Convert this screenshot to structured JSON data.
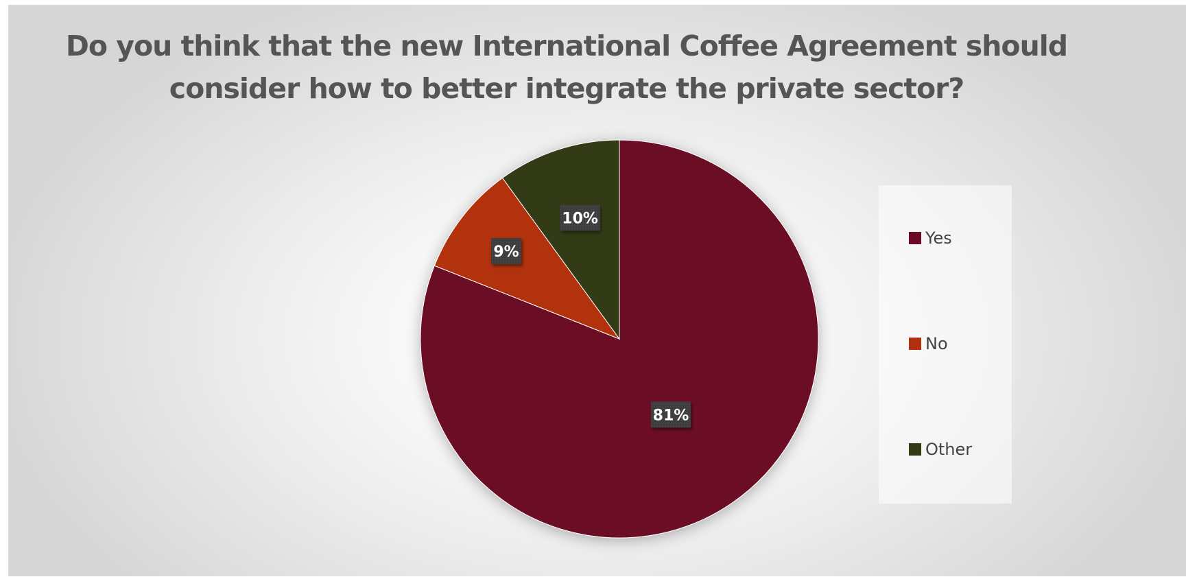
{
  "chart_data": {
    "type": "pie",
    "title": "Do you think that the new International Coffee Agreement should consider how to better integrate the private sector?",
    "title_lines": [
      "Do you think that the new International Coffee Agreement should",
      "consider how to better integrate the private sector?"
    ],
    "categories": [
      "Yes",
      "No",
      "Other"
    ],
    "values": [
      81,
      9,
      10
    ],
    "labels": [
      "81%",
      "9%",
      "10%"
    ],
    "colors": [
      "#6c0a25",
      "#b1300f",
      "#333a14"
    ],
    "legend_position": "right"
  }
}
